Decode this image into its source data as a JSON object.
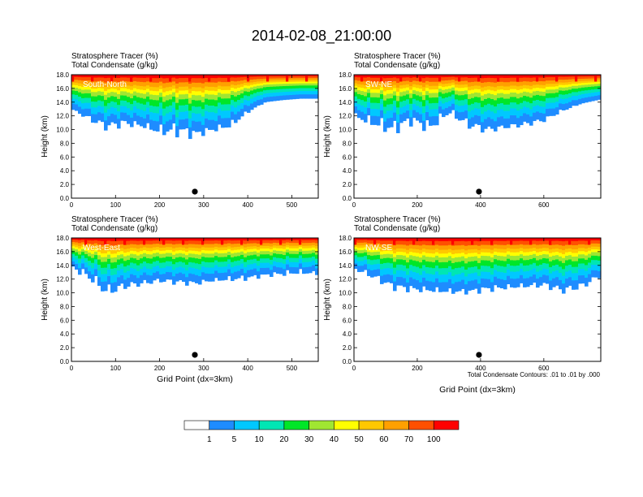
{
  "figure_title": "2014-02-08_21:00:00",
  "colors": {
    "levels": [
      "#ffffff",
      "#1e8cff",
      "#00c8ff",
      "#00e6b4",
      "#00e628",
      "#a0e632",
      "#ffff00",
      "#ffc800",
      "#ffa000",
      "#ff5000",
      "#ff0000"
    ]
  },
  "colorbar": {
    "labels": [
      "1",
      "5",
      "10",
      "20",
      "30",
      "40",
      "50",
      "60",
      "70",
      "100"
    ]
  },
  "contour_note": "Total Condensate Contours: .01 to .01 by .000",
  "chart_data": [
    {
      "type": "heatmap",
      "label": "South-North",
      "header": [
        "Stratosphere Tracer   (%)",
        "Total Condensate   (g/kg)"
      ],
      "ylabel": "Height (km)",
      "xlabel": "",
      "xlim": [
        0,
        560
      ],
      "ylim": [
        0,
        18
      ],
      "xticks": [
        0,
        100,
        200,
        300,
        400,
        500
      ],
      "yticks": [
        "0.0",
        "2.0",
        "4.0",
        "6.0",
        "8.0",
        "10.0",
        "12.0",
        "14.0",
        "16.0",
        "18.0"
      ],
      "marker_x": 280,
      "profile": {
        "x": [
          0,
          40,
          80,
          120,
          160,
          200,
          240,
          280,
          320,
          360,
          400,
          440,
          480,
          520,
          560
        ],
        "bottom_km": [
          13.0,
          11.6,
          10.5,
          11.0,
          10.6,
          9.8,
          10.0,
          9.4,
          10.0,
          10.6,
          12.6,
          14.0,
          14.3,
          14.5,
          14.5
        ],
        "noise": [
          0,
          0.4,
          0.6,
          0.5,
          0.3,
          0.6,
          0.8,
          0.5,
          0.3,
          0.4,
          0.2,
          0,
          0,
          0,
          0
        ]
      }
    },
    {
      "type": "heatmap",
      "label": "SW-NE",
      "header": [
        "Stratosphere Tracer   (%)",
        "Total Condensate   (g/kg)"
      ],
      "ylabel": "Height (km)",
      "xlabel": "",
      "xlim": [
        0,
        780
      ],
      "ylim": [
        0,
        18
      ],
      "xticks": [
        0,
        200,
        400,
        600
      ],
      "yticks": [
        "0.0",
        "2.0",
        "4.0",
        "6.0",
        "8.0",
        "10.0",
        "12.0",
        "14.0",
        "16.0",
        "18.0"
      ],
      "marker_x": 395,
      "profile": {
        "x": [
          0,
          60,
          120,
          180,
          240,
          300,
          360,
          420,
          480,
          540,
          600,
          660,
          720,
          780
        ],
        "bottom_km": [
          12.0,
          11.0,
          10.2,
          11.4,
          10.4,
          12.6,
          10.8,
          10.0,
          10.4,
          10.8,
          11.4,
          12.8,
          13.8,
          14.4
        ],
        "noise": [
          0.3,
          0.6,
          0.8,
          0.6,
          0.7,
          0.4,
          0.6,
          0.5,
          0.3,
          0.4,
          0.3,
          0.2,
          0,
          0
        ]
      }
    },
    {
      "type": "heatmap",
      "label": "West-East",
      "header": [
        "Stratosphere Tracer   (%)",
        "Total Condensate   (g/kg)"
      ],
      "ylabel": "Height (km)",
      "xlabel": "Grid Point (dx=3km)",
      "xlim": [
        0,
        560
      ],
      "ylim": [
        0,
        18
      ],
      "xticks": [
        0,
        100,
        200,
        300,
        400,
        500
      ],
      "yticks": [
        "0.0",
        "2.0",
        "4.0",
        "6.0",
        "8.0",
        "10.0",
        "12.0",
        "14.0",
        "16.0",
        "18.0"
      ],
      "marker_x": 280,
      "profile": {
        "x": [
          0,
          40,
          80,
          120,
          160,
          200,
          240,
          280,
          320,
          360,
          400,
          440,
          480,
          520,
          560
        ],
        "bottom_km": [
          13.8,
          12.4,
          10.2,
          11.0,
          11.4,
          11.8,
          11.6,
          11.4,
          11.8,
          12.0,
          12.2,
          12.6,
          12.8,
          13.0,
          12.8
        ],
        "noise": [
          0.3,
          0.6,
          0.8,
          0.5,
          0.4,
          0.3,
          0.4,
          0.3,
          0.2,
          0.3,
          0.3,
          0.2,
          0.3,
          0.3,
          0.2
        ]
      }
    },
    {
      "type": "heatmap",
      "label": "NW-SE",
      "header": [
        "Stratosphere Tracer   (%)",
        "Total Condensate   (g/kg)"
      ],
      "ylabel": "Height (km)",
      "xlabel": "Grid Point (dx=3km)",
      "xlim": [
        0,
        780
      ],
      "ylim": [
        0,
        18
      ],
      "xticks": [
        0,
        200,
        400,
        600
      ],
      "yticks": [
        "0.0",
        "2.0",
        "4.0",
        "6.0",
        "8.0",
        "10.0",
        "12.0",
        "14.0",
        "16.0",
        "18.0"
      ],
      "marker_x": 395,
      "profile": {
        "x": [
          0,
          60,
          120,
          180,
          240,
          300,
          360,
          420,
          480,
          540,
          600,
          660,
          720,
          780
        ],
        "bottom_km": [
          13.6,
          12.4,
          11.0,
          10.6,
          10.4,
          10.2,
          10.2,
          10.6,
          10.8,
          11.0,
          11.2,
          10.4,
          11.0,
          12.6
        ],
        "noise": [
          0.3,
          0.4,
          0.5,
          0.4,
          0.3,
          0.3,
          0.3,
          0.4,
          0.3,
          0.3,
          0.4,
          0.5,
          0.5,
          0.3
        ]
      }
    }
  ]
}
